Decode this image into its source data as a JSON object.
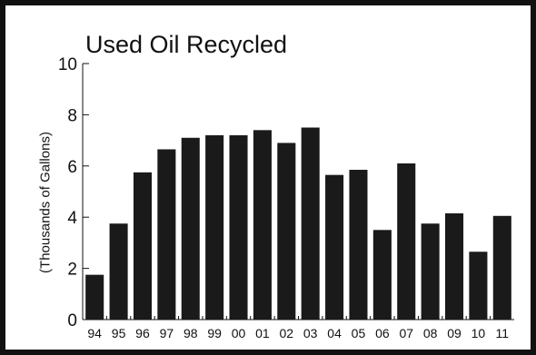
{
  "chart_data": {
    "type": "bar",
    "title": "Used Oil Recycled",
    "xlabel": "",
    "ylabel": "(Thousands of Gallons)",
    "categories": [
      "94",
      "95",
      "96",
      "97",
      "98",
      "99",
      "00",
      "01",
      "02",
      "03",
      "04",
      "05",
      "06",
      "07",
      "08",
      "09",
      "10",
      "11"
    ],
    "values": [
      1.75,
      3.75,
      5.75,
      6.65,
      7.1,
      7.2,
      7.2,
      7.4,
      6.9,
      7.5,
      5.65,
      5.85,
      3.5,
      6.1,
      3.75,
      4.15,
      2.65,
      4.05
    ],
    "ylim": [
      0,
      10
    ],
    "yticks": [
      0,
      2,
      4,
      6,
      8,
      10
    ],
    "grid": false,
    "bar_color": "#1a1a1a"
  }
}
